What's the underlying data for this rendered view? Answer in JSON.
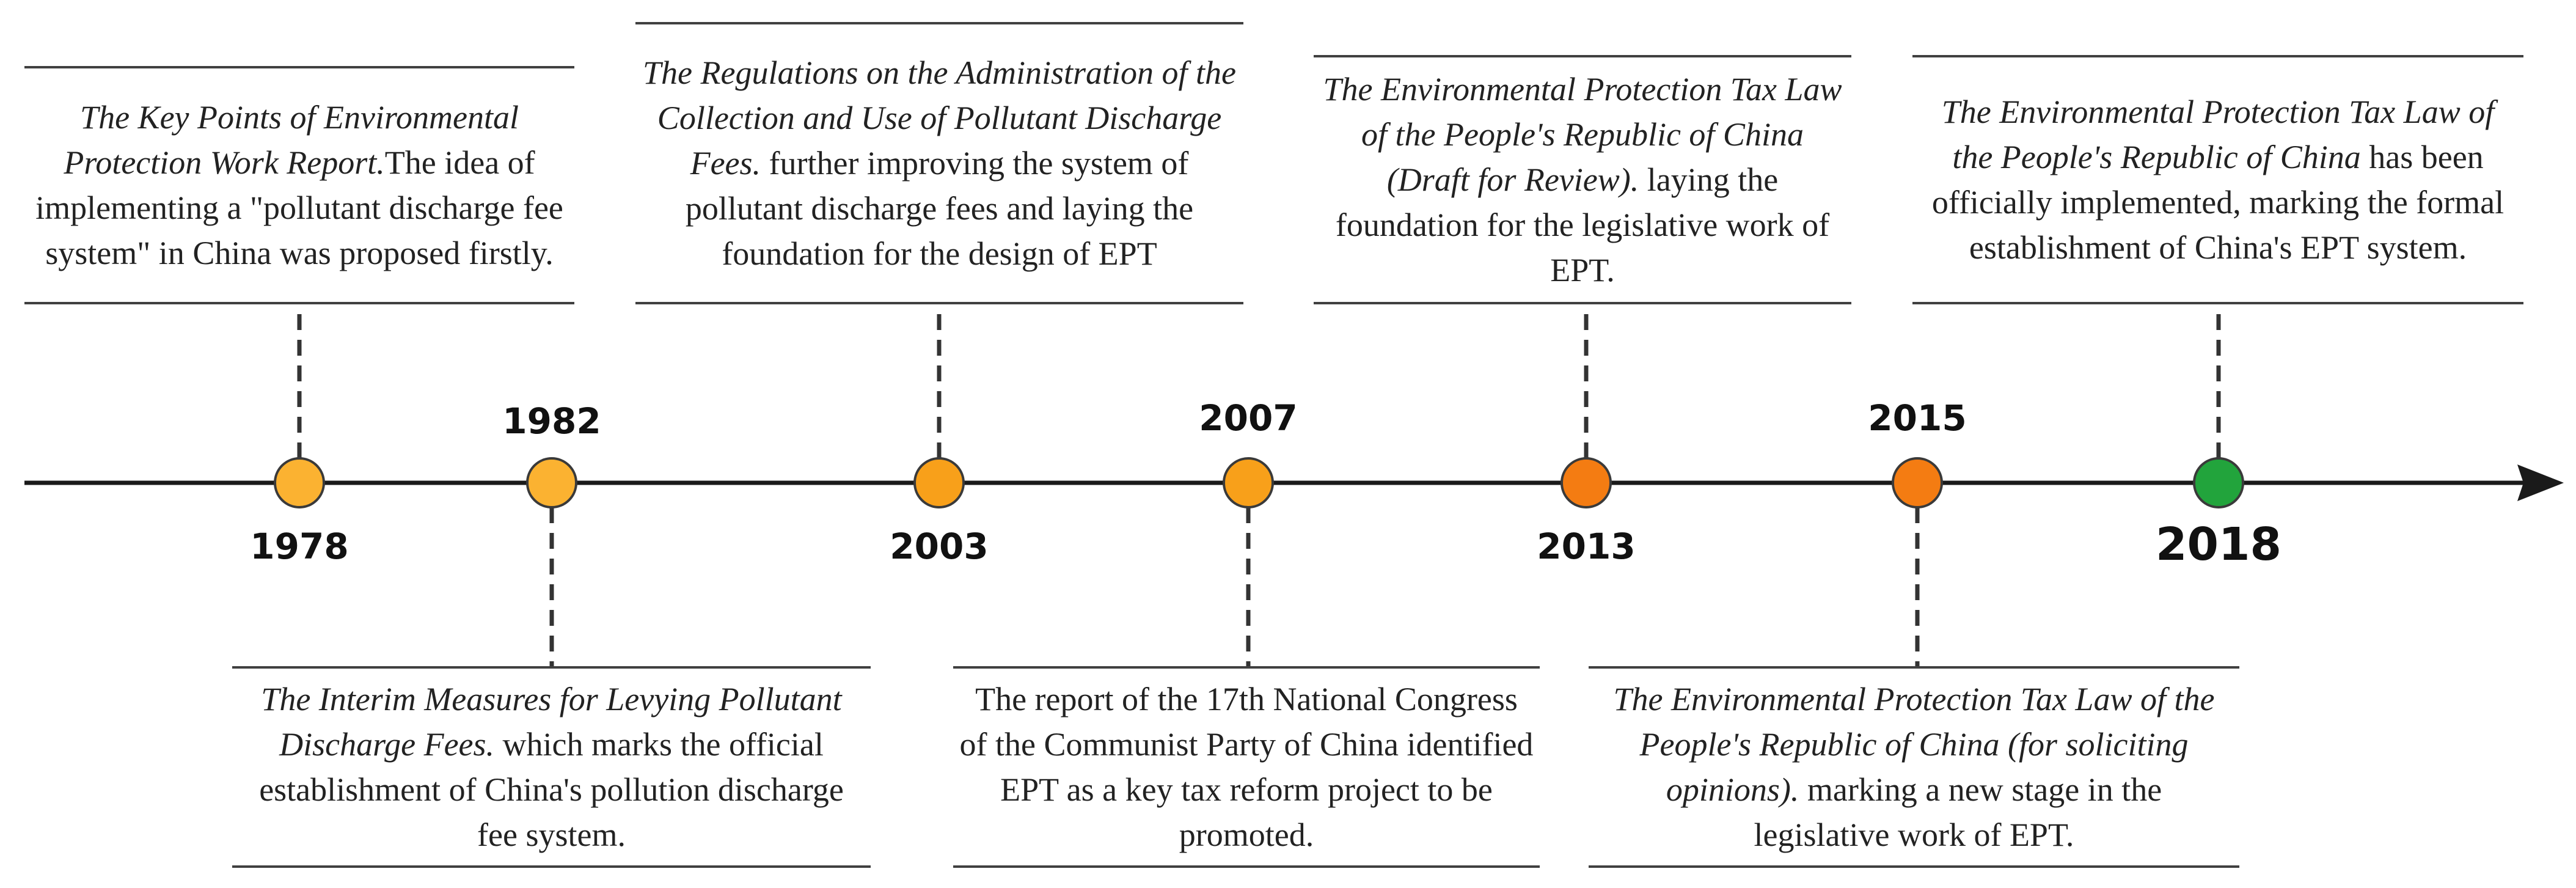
{
  "colors": {
    "line": "#1a1a1a",
    "dash": "#333333",
    "marker_yellow": "#F9B233",
    "marker_orange": "#F39A12",
    "marker_deep_orange": "#F07A10",
    "marker_green": "#1FA33A"
  },
  "events": [
    {
      "year": "1978",
      "marker_color": "#FBB231",
      "italic": "The Key Points of Environmental Protection Work Report.",
      "text": "The idea of implementing a \"pollutant discharge fee system\" in China was proposed firstly."
    },
    {
      "year": "1982",
      "marker_color": "#FBB231",
      "italic": "The Interim Measures for Levying Pollutant Discharge Fees.",
      "text": " which marks the official establishment of China's pollution discharge fee system."
    },
    {
      "year": "2003",
      "marker_color": "#F8A01A",
      "italic": "The Regulations on the Administration of the Collection and Use of Pollutant Discharge Fees.",
      "text": " further improving the system of pollutant discharge fees and laying the foundation for the design of EPT"
    },
    {
      "year": "2007",
      "marker_color": "#F8A01A",
      "italic": "",
      "text": "The report of the 17th National Congress of the Communist Party of China identified EPT as a key tax reform project to be promoted."
    },
    {
      "year": "2013",
      "marker_color": "#F47C12",
      "italic": "The Environmental Protection Tax Law of the People's Republic of China (Draft for Review).",
      "text": " laying the foundation for the legislative work of EPT."
    },
    {
      "year": "2015",
      "marker_color": "#F47C12",
      "italic": "The Environmental Protection Tax Law of the People's Republic of China (for soliciting opinions).",
      "text": " marking a new stage in the legislative work of EPT."
    },
    {
      "year": "2018",
      "marker_color": "#22A43C",
      "italic": "The Environmental Protection Tax Law of the People's Republic of China",
      "text": " has been officially implemented, marking the formal establishment of China's EPT system."
    }
  ]
}
